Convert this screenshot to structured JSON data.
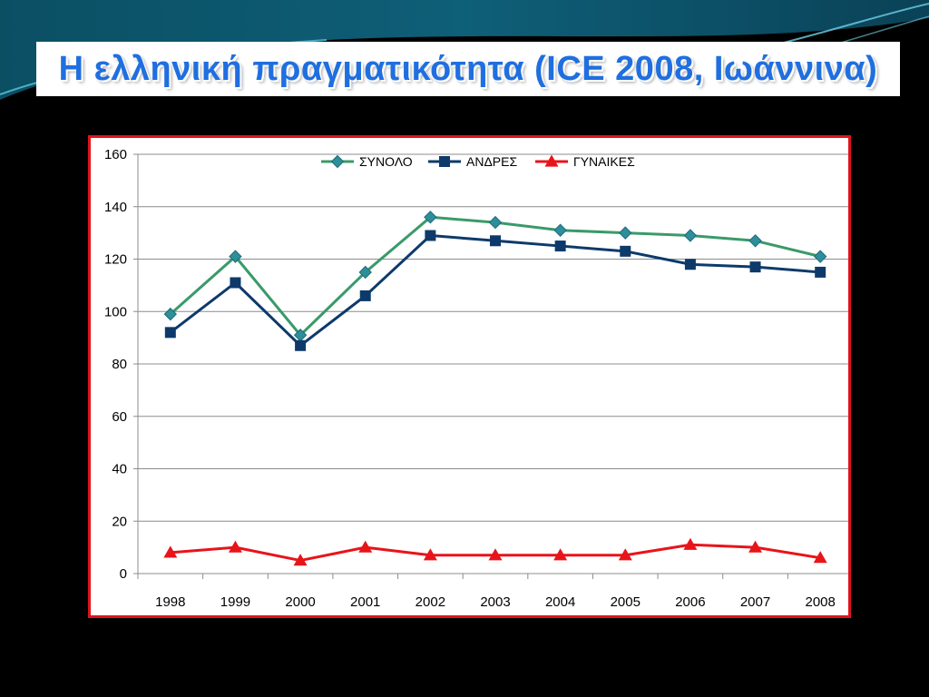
{
  "slide": {
    "title": "Η ελληνική πραγματικότητα (ICE 2008, Ιωάννινα)",
    "title_color": "#1f6fe0",
    "background_color": "#000000",
    "frame_color": "#e0141a"
  },
  "chart_data": {
    "type": "line",
    "categories": [
      "1998",
      "1999",
      "2000",
      "2001",
      "2002",
      "2003",
      "2004",
      "2005",
      "2006",
      "2007",
      "2008"
    ],
    "series": [
      {
        "name": "ΣΥΝΟΛΟ",
        "color": "#3a9a6a",
        "marker": "diamond",
        "values": [
          99,
          121,
          91,
          115,
          136,
          134,
          131,
          130,
          129,
          127,
          121
        ]
      },
      {
        "name": "ΑΝΔΡΕΣ",
        "color": "#0d3a6b",
        "marker": "square",
        "values": [
          92,
          111,
          87,
          106,
          129,
          127,
          125,
          123,
          118,
          117,
          115
        ]
      },
      {
        "name": "ΓΥΝΑΙΚΕΣ",
        "color": "#e8141a",
        "marker": "triangle",
        "values": [
          8,
          10,
          5,
          10,
          7,
          7,
          7,
          7,
          11,
          10,
          6
        ]
      }
    ],
    "title": "",
    "xlabel": "",
    "ylabel": "",
    "ylim": [
      0,
      160
    ],
    "yticks": [
      0,
      20,
      40,
      60,
      80,
      100,
      120,
      140,
      160
    ],
    "grid": true,
    "legend_position": "top"
  }
}
